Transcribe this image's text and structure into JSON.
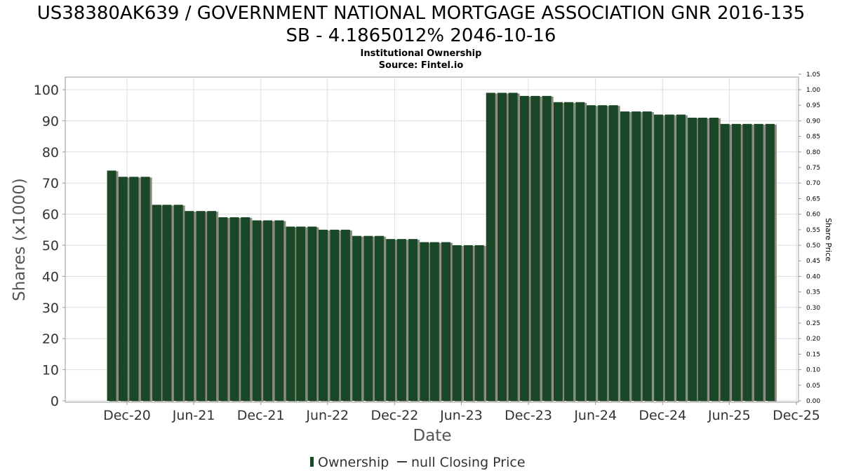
{
  "chart_data": {
    "type": "bar",
    "title_line1": "US38380AK639 / GOVERNMENT NATIONAL MORTGAGE ASSOCIATION GNR 2016-135",
    "title_line2": "SB - 4.1865012% 2046-10-16",
    "subtitle_line1": "Institutional Ownership",
    "subtitle_line2": "Source: Fintel.io",
    "xlabel": "Date",
    "ylabel": "Shares (x1000)",
    "ylabel_right": "Share Price",
    "ylim": [
      0,
      105
    ],
    "ylim_right": [
      0,
      1.05
    ],
    "y_ticks": [
      "0",
      "10",
      "20",
      "30",
      "40",
      "50",
      "60",
      "70",
      "80",
      "90",
      "100"
    ],
    "y_ticks_right": [
      "0.00",
      "0.05",
      "0.10",
      "0.15",
      "0.20",
      "0.25",
      "0.30",
      "0.35",
      "0.40",
      "0.45",
      "0.50",
      "0.55",
      "0.60",
      "0.65",
      "0.70",
      "0.75",
      "0.80",
      "0.85",
      "0.90",
      "0.95",
      "1.00",
      "1.05"
    ],
    "x_ticks": [
      "Dec-20",
      "Jun-21",
      "Dec-21",
      "Jun-22",
      "Dec-22",
      "Jun-23",
      "Dec-23",
      "Jun-24",
      "Dec-24",
      "Jun-25",
      "Dec-25"
    ],
    "x_ticks_dates": [
      "2020-12-01",
      "2021-06-01",
      "2021-12-01",
      "2022-06-01",
      "2022-12-01",
      "2023-06-01",
      "2023-12-01",
      "2024-06-01",
      "2024-12-01",
      "2025-06-01",
      "2025-12-01"
    ],
    "x_range": [
      "2020-08-01",
      "2025-12-01"
    ],
    "grid": true,
    "legend_placement": "bottom-center",
    "series": [
      {
        "name": "Ownership",
        "color": "#1a4726",
        "x": [
          "2020-10-20",
          "2020-11-20",
          "2020-12-20",
          "2021-01-20",
          "2021-02-20",
          "2021-03-20",
          "2021-04-20",
          "2021-05-20",
          "2021-06-20",
          "2021-07-20",
          "2021-08-20",
          "2021-09-20",
          "2021-10-20",
          "2021-11-20",
          "2021-12-20",
          "2022-01-20",
          "2022-02-20",
          "2022-03-20",
          "2022-04-20",
          "2022-05-20",
          "2022-06-20",
          "2022-07-20",
          "2022-08-20",
          "2022-09-20",
          "2022-10-20",
          "2022-11-20",
          "2022-12-20",
          "2023-01-20",
          "2023-02-20",
          "2023-03-20",
          "2023-04-20",
          "2023-05-20",
          "2023-06-20",
          "2023-07-20",
          "2023-08-20",
          "2023-09-20",
          "2023-10-20",
          "2023-11-20",
          "2023-12-20",
          "2024-01-20",
          "2024-02-20",
          "2024-03-20",
          "2024-04-20",
          "2024-05-20",
          "2024-06-20",
          "2024-07-20",
          "2024-08-20",
          "2024-09-20",
          "2024-10-20",
          "2024-11-20",
          "2024-12-20",
          "2025-01-20",
          "2025-02-20",
          "2025-03-20",
          "2025-04-20",
          "2025-05-20",
          "2025-06-20",
          "2025-07-20",
          "2025-08-20",
          "2025-09-20"
        ],
        "values": [
          74,
          72,
          72,
          72,
          63,
          63,
          63,
          61,
          61,
          61,
          59,
          59,
          59,
          58,
          58,
          58,
          56,
          56,
          56,
          55,
          55,
          55,
          53,
          53,
          53,
          52,
          52,
          52,
          51,
          51,
          51,
          50,
          50,
          50,
          99,
          99,
          99,
          98,
          98,
          98,
          96,
          96,
          96,
          95,
          95,
          95,
          93,
          93,
          93,
          92,
          92,
          92,
          91,
          91,
          91,
          89,
          89,
          89,
          89,
          89
        ]
      },
      {
        "name": "null Closing Price",
        "color": "#000000",
        "values": []
      }
    ]
  }
}
